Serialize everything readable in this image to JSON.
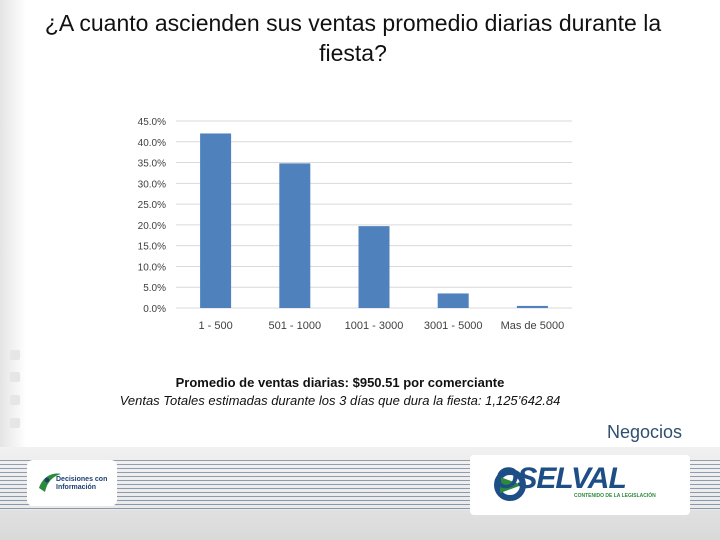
{
  "slide": {
    "title": "¿A cuanto ascienden sus ventas promedio diarias durante la fiesta?",
    "note_average": "Promedio de ventas diarias: $950.51 por comerciante",
    "note_total": "Ventas Totales estimadas durante los 3 días que dura la fiesta: 1,125’642.84",
    "section_label": "Negocios"
  },
  "logos": {
    "left_logo": "Decisiones con Información",
    "right_logo": "OSELVAL",
    "right_logo_sub": "CONTENIDO DE LA LEGISLACIÓN"
  },
  "colors": {
    "bar": "#4f81bd",
    "grid": "#d9d9d9",
    "axis_text": "#404040",
    "seal_blue": "#1d4e86",
    "seal_green": "#2c8a3c"
  },
  "chart_data": {
    "type": "bar",
    "categories": [
      "1 - 500",
      "501 - 1000",
      "1001 - 3000",
      "3001 - 5000",
      "Mas de 5000"
    ],
    "values": [
      42.0,
      34.8,
      19.7,
      3.5,
      0.5
    ],
    "ylim": [
      0,
      45
    ],
    "yticks": [
      0,
      5,
      10,
      15,
      20,
      25,
      30,
      35,
      40,
      45
    ],
    "ytick_labels": [
      "0.0%",
      "5.0%",
      "10.0%",
      "15.0%",
      "20.0%",
      "25.0%",
      "30.0%",
      "35.0%",
      "40.0%",
      "45.0%"
    ],
    "grid": true,
    "legend": "none",
    "title": "",
    "xlabel": "",
    "ylabel": ""
  }
}
